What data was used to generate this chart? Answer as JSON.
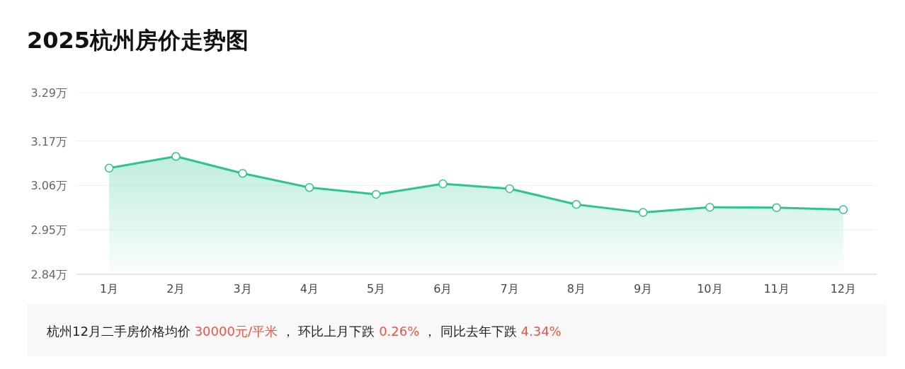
{
  "chart_data": {
    "type": "area",
    "title": "2025杭州房价走势图",
    "categories": [
      "1月",
      "2月",
      "3月",
      "4月",
      "5月",
      "6月",
      "7月",
      "8月",
      "9月",
      "10月",
      "11月",
      "12月"
    ],
    "series": [
      {
        "color": "#2ec38f",
        "values": [
          3.103,
          3.132,
          3.09,
          3.055,
          3.038,
          3.064,
          3.052,
          3.013,
          2.993,
          3.006,
          3.005,
          3.0
        ]
      }
    ],
    "ylim": [
      2.84,
      3.29
    ],
    "yticks": [
      {
        "value": 2.84,
        "label": "2.84万"
      },
      {
        "value": 2.95,
        "label": "2.95万"
      },
      {
        "value": 3.06,
        "label": "3.06万"
      },
      {
        "value": 3.17,
        "label": "3.17万"
      },
      {
        "value": 3.29,
        "label": "3.29万"
      }
    ],
    "grid": "y",
    "marker": "circle",
    "line_style": "solid",
    "annotations": [
      "杭州12月二手房价格均价 30000元/平米 ， 环比上月下跌 0.26% ， 同比去年下跌 4.34%"
    ]
  }
}
